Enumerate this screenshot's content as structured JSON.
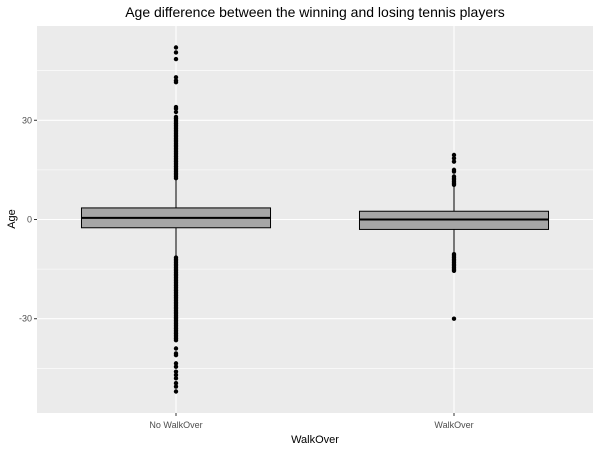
{
  "chart_data": {
    "type": "boxplot",
    "title": "Age difference between the winning and losing tennis players",
    "xlabel": "WalkOver",
    "ylabel": "Age",
    "categories": [
      "No WalkOver",
      "WalkOver"
    ],
    "ylim": [
      -58.5,
      58.5
    ],
    "yticks": [
      -30,
      0,
      30
    ],
    "grid": true,
    "colors": {
      "panel": "#ebebeb",
      "grid": "#ffffff",
      "box_fill": "#a6a6a6",
      "stroke": "#000000"
    },
    "boxes": [
      {
        "category": "No WalkOver",
        "q1": -2.5,
        "median": 0.5,
        "q3": 3.5,
        "whisker_low": -11.5,
        "whisker_high": 12.5,
        "outliers_dense_ranges": [
          [
            12.5,
            31
          ],
          [
            -36,
            -11.5
          ]
        ],
        "outliers": [
          52,
          50.5,
          48.5,
          43,
          42,
          41.5,
          34,
          33.5,
          32.5,
          -36.5,
          -39,
          -40.5,
          -41,
          -43.5,
          -44.5,
          -46,
          -47,
          -48,
          -49.5,
          -50.5,
          -52
        ]
      },
      {
        "category": "WalkOver",
        "q1": -3,
        "median": 0,
        "q3": 2.5,
        "whisker_low": -10.5,
        "whisker_high": 10.5,
        "outliers_dense_ranges": [
          [
            10.5,
            13
          ],
          [
            -15.5,
            -10.5
          ]
        ],
        "outliers": [
          19.5,
          18.5,
          17.5,
          15,
          14.5,
          -30
        ]
      }
    ]
  }
}
